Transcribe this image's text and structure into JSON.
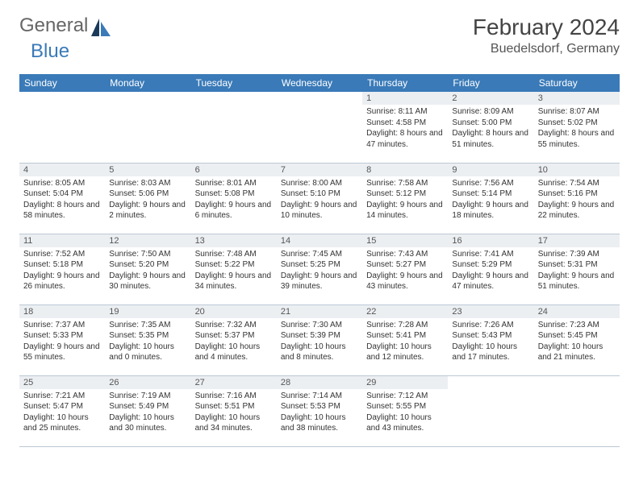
{
  "logo": {
    "text1": "General",
    "text2": "Blue"
  },
  "title": "February 2024",
  "location": "Buedelsdorf, Germany",
  "colors": {
    "header_bg": "#3a7ab8",
    "header_text": "#ffffff",
    "daynum_bg": "#eceff2",
    "row_border": "#bcc8d4",
    "logo_blue": "#3a7ab8",
    "logo_dark": "#1a3a5a"
  },
  "weekdays": [
    "Sunday",
    "Monday",
    "Tuesday",
    "Wednesday",
    "Thursday",
    "Friday",
    "Saturday"
  ],
  "weeks": [
    [
      null,
      null,
      null,
      null,
      {
        "n": "1",
        "sr": "8:11 AM",
        "ss": "4:58 PM",
        "dl": "8 hours and 47 minutes."
      },
      {
        "n": "2",
        "sr": "8:09 AM",
        "ss": "5:00 PM",
        "dl": "8 hours and 51 minutes."
      },
      {
        "n": "3",
        "sr": "8:07 AM",
        "ss": "5:02 PM",
        "dl": "8 hours and 55 minutes."
      }
    ],
    [
      {
        "n": "4",
        "sr": "8:05 AM",
        "ss": "5:04 PM",
        "dl": "8 hours and 58 minutes."
      },
      {
        "n": "5",
        "sr": "8:03 AM",
        "ss": "5:06 PM",
        "dl": "9 hours and 2 minutes."
      },
      {
        "n": "6",
        "sr": "8:01 AM",
        "ss": "5:08 PM",
        "dl": "9 hours and 6 minutes."
      },
      {
        "n": "7",
        "sr": "8:00 AM",
        "ss": "5:10 PM",
        "dl": "9 hours and 10 minutes."
      },
      {
        "n": "8",
        "sr": "7:58 AM",
        "ss": "5:12 PM",
        "dl": "9 hours and 14 minutes."
      },
      {
        "n": "9",
        "sr": "7:56 AM",
        "ss": "5:14 PM",
        "dl": "9 hours and 18 minutes."
      },
      {
        "n": "10",
        "sr": "7:54 AM",
        "ss": "5:16 PM",
        "dl": "9 hours and 22 minutes."
      }
    ],
    [
      {
        "n": "11",
        "sr": "7:52 AM",
        "ss": "5:18 PM",
        "dl": "9 hours and 26 minutes."
      },
      {
        "n": "12",
        "sr": "7:50 AM",
        "ss": "5:20 PM",
        "dl": "9 hours and 30 minutes."
      },
      {
        "n": "13",
        "sr": "7:48 AM",
        "ss": "5:22 PM",
        "dl": "9 hours and 34 minutes."
      },
      {
        "n": "14",
        "sr": "7:45 AM",
        "ss": "5:25 PM",
        "dl": "9 hours and 39 minutes."
      },
      {
        "n": "15",
        "sr": "7:43 AM",
        "ss": "5:27 PM",
        "dl": "9 hours and 43 minutes."
      },
      {
        "n": "16",
        "sr": "7:41 AM",
        "ss": "5:29 PM",
        "dl": "9 hours and 47 minutes."
      },
      {
        "n": "17",
        "sr": "7:39 AM",
        "ss": "5:31 PM",
        "dl": "9 hours and 51 minutes."
      }
    ],
    [
      {
        "n": "18",
        "sr": "7:37 AM",
        "ss": "5:33 PM",
        "dl": "9 hours and 55 minutes."
      },
      {
        "n": "19",
        "sr": "7:35 AM",
        "ss": "5:35 PM",
        "dl": "10 hours and 0 minutes."
      },
      {
        "n": "20",
        "sr": "7:32 AM",
        "ss": "5:37 PM",
        "dl": "10 hours and 4 minutes."
      },
      {
        "n": "21",
        "sr": "7:30 AM",
        "ss": "5:39 PM",
        "dl": "10 hours and 8 minutes."
      },
      {
        "n": "22",
        "sr": "7:28 AM",
        "ss": "5:41 PM",
        "dl": "10 hours and 12 minutes."
      },
      {
        "n": "23",
        "sr": "7:26 AM",
        "ss": "5:43 PM",
        "dl": "10 hours and 17 minutes."
      },
      {
        "n": "24",
        "sr": "7:23 AM",
        "ss": "5:45 PM",
        "dl": "10 hours and 21 minutes."
      }
    ],
    [
      {
        "n": "25",
        "sr": "7:21 AM",
        "ss": "5:47 PM",
        "dl": "10 hours and 25 minutes."
      },
      {
        "n": "26",
        "sr": "7:19 AM",
        "ss": "5:49 PM",
        "dl": "10 hours and 30 minutes."
      },
      {
        "n": "27",
        "sr": "7:16 AM",
        "ss": "5:51 PM",
        "dl": "10 hours and 34 minutes."
      },
      {
        "n": "28",
        "sr": "7:14 AM",
        "ss": "5:53 PM",
        "dl": "10 hours and 38 minutes."
      },
      {
        "n": "29",
        "sr": "7:12 AM",
        "ss": "5:55 PM",
        "dl": "10 hours and 43 minutes."
      },
      null,
      null
    ]
  ],
  "labels": {
    "sunrise": "Sunrise:",
    "sunset": "Sunset:",
    "daylight": "Daylight:"
  }
}
